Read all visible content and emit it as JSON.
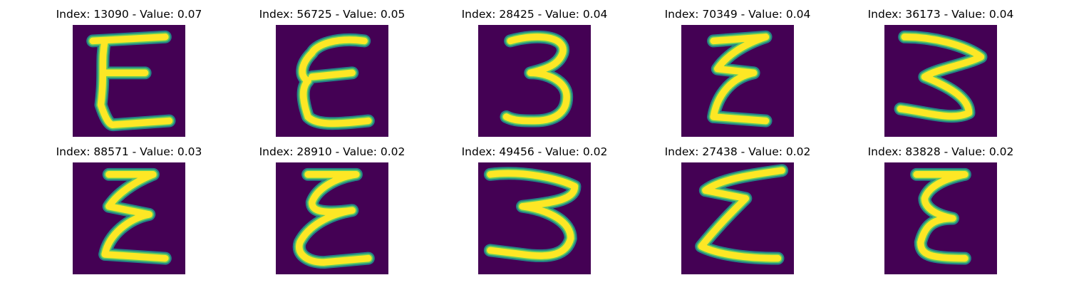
{
  "colors": {
    "background": "#440154",
    "stroke_outer": "#21918c",
    "stroke_mid": "#5ec962",
    "stroke_core": "#fde725"
  },
  "tiles": [
    {
      "title": "Index: 13090 - Value: 0.07",
      "glyph": "E"
    },
    {
      "title": "Index: 56725 - Value: 0.05",
      "glyph": "E"
    },
    {
      "title": "Index: 28425 - Value: 0.04",
      "glyph": "3"
    },
    {
      "title": "Index: 70349 - Value: 0.04",
      "glyph": "E"
    },
    {
      "title": "Index: 36173 - Value: 0.04",
      "glyph": "3"
    },
    {
      "title": "Index: 88571 - Value: 0.03",
      "glyph": "E"
    },
    {
      "title": "Index: 28910 - Value: 0.02",
      "glyph": "E"
    },
    {
      "title": "Index: 49456 - Value: 0.02",
      "glyph": "3"
    },
    {
      "title": "Index: 27438 - Value: 0.02",
      "glyph": "E"
    },
    {
      "title": "Index: 83828 - Value: 0.02",
      "glyph": "E"
    }
  ]
}
